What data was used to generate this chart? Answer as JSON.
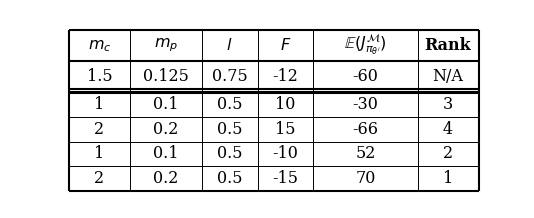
{
  "col_headers": [
    "$m_c$",
    "$m_p$",
    "$l$",
    "$F$",
    "$\\mathbb{E}(J^{\\mathcal{M}}_{\\pi_{\\theta^i}})$",
    "Rank"
  ],
  "row1": [
    "1.5",
    "0.125",
    "0.75",
    "-12",
    "-60",
    "N/A"
  ],
  "rows": [
    [
      "1",
      "0.1",
      "0.5",
      "10",
      "-30",
      "3"
    ],
    [
      "2",
      "0.2",
      "0.5",
      "15",
      "-66",
      "4"
    ],
    [
      "1",
      "0.1",
      "0.5",
      "-10",
      "52",
      "2"
    ],
    [
      "2",
      "0.2",
      "0.5",
      "-15",
      "70",
      "1"
    ]
  ],
  "background_color": "#ffffff",
  "line_color": "#000000",
  "text_color": "#000000",
  "col_weights": [
    0.85,
    1.0,
    0.78,
    0.78,
    1.45,
    0.85
  ],
  "fontsize": 11.5,
  "header_fontsize": 11.5,
  "lw_outer": 1.5,
  "lw_inner": 0.7,
  "lw_thick_sep": 2.2
}
